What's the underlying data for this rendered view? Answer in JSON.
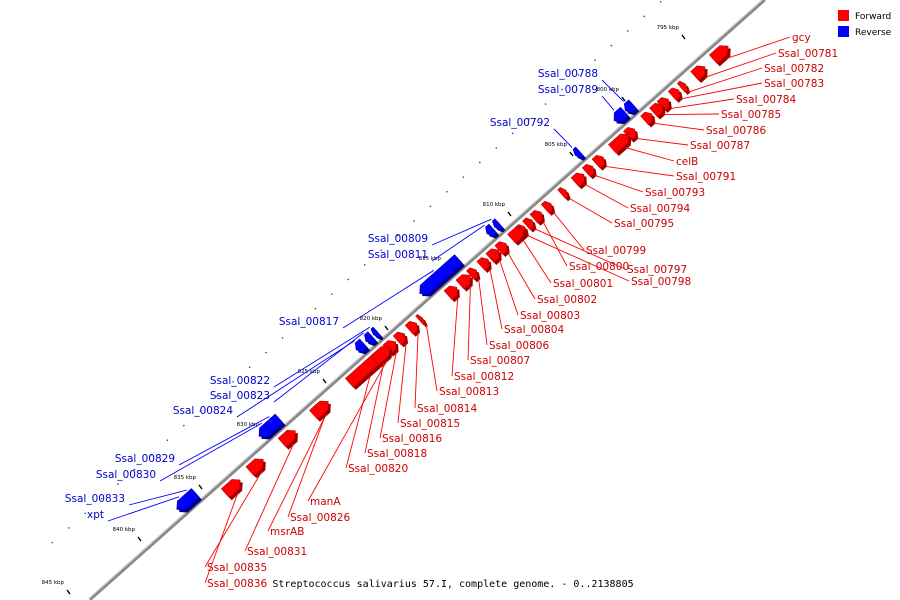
{
  "caption": "Streptococcus salivarius 57.I, complete genome. - 0..2138805",
  "legend": {
    "forward": {
      "label": "Forward",
      "color": "#ff0000"
    },
    "reverse": {
      "label": "Reverse",
      "color": "#0000ff"
    }
  },
  "colors": {
    "forward_text": "#cc0000",
    "reverse_text": "#0000cc",
    "backbone": "#888888"
  },
  "scale_ticks": [
    "795 kbp",
    "800 kbp",
    "805 kbp",
    "810 kbp",
    "815 kbp",
    "820 kbp",
    "825 kbp",
    "830 kbp",
    "835 kbp",
    "840 kbp",
    "845 kbp"
  ],
  "forward_genes": [
    "gcy",
    "Ssal_00781",
    "Ssal_00782",
    "Ssal_00783",
    "Ssal_00784",
    "Ssal_00785",
    "Ssal_00786",
    "Ssal_00787",
    "celB",
    "Ssal_00791",
    "Ssal_00793",
    "Ssal_00794",
    "Ssal_00795",
    "Ssal_00799",
    "Ssal_00800",
    "Ssal_00797",
    "Ssal_00798",
    "Ssal_00801",
    "Ssal_00802",
    "Ssal_00803",
    "Ssal_00804",
    "Ssal_00806",
    "Ssal_00807",
    "Ssal_00812",
    "Ssal_00813",
    "Ssal_00814",
    "Ssal_00815",
    "Ssal_00816",
    "Ssal_00818",
    "Ssal_00820",
    "manA",
    "Ssal_00826",
    "msrAB",
    "Ssal_00831",
    "Ssal_00835",
    "Ssal_00836"
  ],
  "reverse_genes": [
    "Ssal_00788",
    "Ssal_00789",
    "Ssal_00792",
    "Ssal_00809",
    "Ssal_00811",
    "Ssal_00817",
    "Ssal_00822",
    "Ssal_00823",
    "Ssal_00824",
    "Ssal_00829",
    "Ssal_00830",
    "Ssal_00833",
    "xpt"
  ]
}
